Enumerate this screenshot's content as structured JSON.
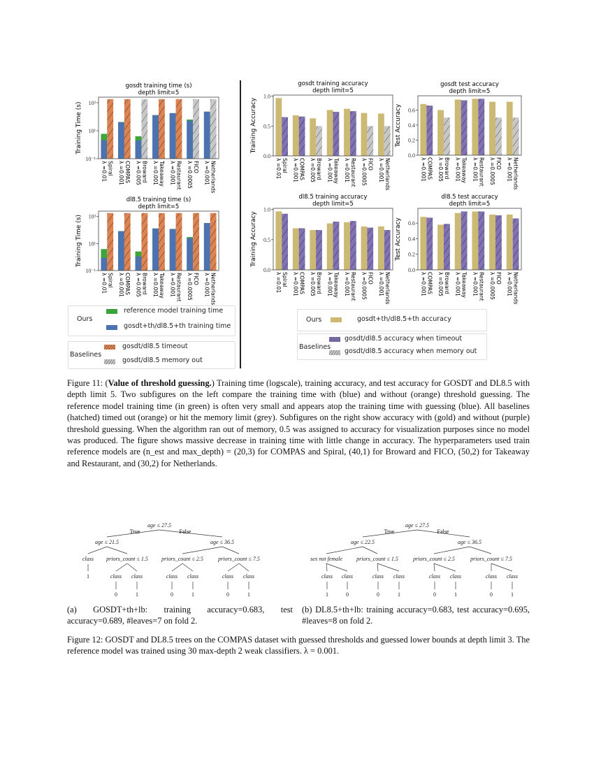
{
  "colors": {
    "green": "#3ba43b",
    "blue": "#4c72b0",
    "orange": "#dd8452",
    "grey": "#c7c7c7",
    "gold": "#ccb974",
    "purple": "#8172b3"
  },
  "chart_data": [
    {
      "id": "gosdt_time",
      "type": "bar",
      "title": "gosdt training time (s)",
      "subtitle": "depth limit=5",
      "ylabel": "Training Time (s)",
      "yscale": "log",
      "ylim": [
        0.1,
        2500
      ],
      "yticks": [
        "10⁻¹",
        "10¹",
        "10³"
      ],
      "ytick_values": [
        0.1,
        10,
        1000
      ],
      "categories": [
        "Spiral",
        "COMPAS",
        "Broward",
        "Takeaway",
        "Restaurant",
        "FICO",
        "Netherlands"
      ],
      "lambdas": [
        "λ =0.01",
        "λ =0.001",
        "λ =0.005",
        "λ =0.001",
        "λ =0.001",
        "λ =0.0005",
        "λ =0.001"
      ],
      "series": [
        {
          "name": "gosdt+th/dl8.5+th training time",
          "values": [
            2.1,
            40,
            2,
            130,
            180,
            52,
            230
          ]
        },
        {
          "name": "reference model training time",
          "values": [
            6,
            42,
            4,
            130,
            180,
            63,
            230
          ]
        },
        {
          "name": "baseline",
          "values": [
            1800,
            1800,
            1800,
            1800,
            1800,
            1800,
            1800
          ],
          "status": [
            "timeout",
            "timeout",
            "memory out",
            "timeout",
            "timeout",
            "memory out",
            "memory out"
          ]
        }
      ]
    },
    {
      "id": "dl85_time",
      "type": "bar",
      "title": "dl8.5 training time (s)",
      "subtitle": "depth limit=5",
      "ylabel": "Training Time (s)",
      "yscale": "log",
      "ylim": [
        0.1,
        2500
      ],
      "yticks": [
        "10⁻¹",
        "10¹",
        "10³"
      ],
      "ytick_values": [
        0.1,
        10,
        1000
      ],
      "categories": [
        "Spiral",
        "COMPAS",
        "Broward",
        "Takeaway",
        "Restaurant",
        "FICO",
        "Netherlands"
      ],
      "lambdas": [
        "λ =0.01",
        "λ =0.001",
        "λ =0.005",
        "λ =0.001",
        "λ =0.001",
        "λ =0.0005",
        "λ =0.001"
      ],
      "series": [
        {
          "name": "gosdt+th/dl8.5+th training time",
          "values": [
            0.85,
            82,
            1.1,
            130,
            120,
            25,
            330
          ]
        },
        {
          "name": "reference model training time",
          "values": [
            3.9,
            82,
            2.6,
            130,
            120,
            30,
            330
          ]
        },
        {
          "name": "baseline",
          "values": [
            1800,
            1800,
            1800,
            1800,
            1800,
            1800,
            1800
          ],
          "status": [
            "timeout",
            "timeout",
            "timeout",
            "timeout",
            "timeout",
            "timeout",
            "timeout"
          ]
        }
      ]
    },
    {
      "id": "gosdt_train_acc",
      "type": "bar",
      "title": "gosdt training accuracy",
      "subtitle": "depth limit=5",
      "ylabel": "Training Accuracy",
      "yscale": "linear",
      "ylim": [
        0,
        1.02
      ],
      "yticks": [
        "0.0",
        "0.5",
        "1.0"
      ],
      "ytick_values": [
        0,
        0.5,
        1.0
      ],
      "categories": [
        "Spiral",
        "COMPAS",
        "Broward",
        "Takeaway",
        "Restaurant",
        "FICO",
        "Netherlands"
      ],
      "lambdas": [
        "λ =0.01",
        "λ =0.001",
        "λ =0.005",
        "λ =0.001",
        "λ =0.001",
        "λ =0.0005",
        "λ =0.001"
      ],
      "series": [
        {
          "name": "gosdt+th/dl8.5+th accuracy",
          "values": [
            0.97,
            0.68,
            0.63,
            0.77,
            0.79,
            0.72,
            0.71
          ]
        },
        {
          "name": "baseline",
          "values": [
            0.65,
            0.66,
            0.5,
            0.74,
            0.75,
            0.5,
            0.5
          ],
          "status": [
            "timeout",
            "timeout",
            "memory out",
            "timeout",
            "timeout",
            "memory out",
            "memory out"
          ]
        }
      ]
    },
    {
      "id": "gosdt_test_acc",
      "type": "bar",
      "title": "gosdt test accuracy",
      "subtitle": "depth limit=5",
      "ylabel": "Test Accuracy",
      "yscale": "linear",
      "ylim": [
        0,
        0.79
      ],
      "yticks": [
        "0.0",
        "0.2",
        "0.4",
        "0.6"
      ],
      "ytick_values": [
        0,
        0.2,
        0.4,
        0.6
      ],
      "categories": [
        "COMPAS",
        "Broward",
        "Takeaway",
        "Restaurant",
        "FICO",
        "Netherlands"
      ],
      "lambdas": [
        "λ =0.001",
        "λ =0.005",
        "λ =0.001",
        "λ =0.001",
        "λ =0.0005",
        "λ =0.001"
      ],
      "series": [
        {
          "name": "gosdt+th/dl8.5+th accuracy",
          "values": [
            0.68,
            0.6,
            0.74,
            0.75,
            0.71,
            0.71
          ]
        },
        {
          "name": "baseline",
          "values": [
            0.66,
            0.5,
            0.73,
            0.75,
            0.5,
            0.5
          ],
          "status": [
            "timeout",
            "memory out",
            "timeout",
            "timeout",
            "memory out",
            "memory out"
          ]
        }
      ]
    },
    {
      "id": "dl85_train_acc",
      "type": "bar",
      "title": "dl8.5 training accuracy",
      "subtitle": "depth limit=5",
      "ylabel": "Training Accuracy",
      "yscale": "linear",
      "ylim": [
        0,
        1.02
      ],
      "yticks": [
        "0.0",
        "0.5",
        "1.0"
      ],
      "ytick_values": [
        0,
        0.5,
        1.0
      ],
      "categories": [
        "Spiral",
        "COMPAS",
        "Broward",
        "Takeaway",
        "Restaurant",
        "FICO",
        "Netherlands"
      ],
      "lambdas": [
        "λ =0.01",
        "λ =0.001",
        "λ =0.005",
        "λ =0.001",
        "λ =0.001",
        "λ =0.0005",
        "λ =0.001"
      ],
      "series": [
        {
          "name": "gosdt+th/dl8.5+th accuracy",
          "values": [
            0.97,
            0.69,
            0.66,
            0.77,
            0.79,
            0.72,
            0.72
          ]
        },
        {
          "name": "baseline",
          "values": [
            0.93,
            0.69,
            0.66,
            0.8,
            0.81,
            0.7,
            0.66
          ],
          "status": [
            "timeout",
            "timeout",
            "timeout",
            "timeout",
            "timeout",
            "timeout",
            "timeout"
          ]
        }
      ]
    },
    {
      "id": "dl85_test_acc",
      "type": "bar",
      "title": "dl8.5 test accuracy",
      "subtitle": "depth limit=5",
      "ylabel": "Test Accuracy",
      "yscale": "linear",
      "ylim": [
        0,
        0.79
      ],
      "yticks": [
        "0.0",
        "0.2",
        "0.4",
        "0.6"
      ],
      "ytick_values": [
        0,
        0.2,
        0.4,
        0.6
      ],
      "categories": [
        "COMPAS",
        "Broward",
        "Takeaway",
        "Restaurant",
        "FICO",
        "Netherlands"
      ],
      "lambdas": [
        "λ =0.001",
        "λ =0.005",
        "λ =0.001",
        "λ =0.001",
        "λ =0.0005",
        "λ =0.001"
      ],
      "series": [
        {
          "name": "gosdt+th/dl8.5+th accuracy",
          "values": [
            0.68,
            0.58,
            0.73,
            0.75,
            0.71,
            0.71
          ]
        },
        {
          "name": "baseline",
          "values": [
            0.67,
            0.59,
            0.75,
            0.75,
            0.7,
            0.66
          ],
          "status": [
            "timeout",
            "timeout",
            "timeout",
            "timeout",
            "timeout",
            "timeout"
          ]
        }
      ]
    }
  ],
  "legend_time": {
    "ours": "Ours",
    "baselines": "Baselines",
    "reference": "reference model training time",
    "guess": "gosdt+th/dl8.5+th training time",
    "timeout": "gosdt/dl8.5 timeout",
    "memory": "gosdt/dl8.5 memory out"
  },
  "legend_acc": {
    "ours": "Ours",
    "baselines": "Baselines",
    "guess": "gosdt+th/dl8.5+th accuracy",
    "timeout": "gosdt/dl8.5 accuracy when timeout",
    "memory": "gosdt/dl8.5 accuracy when memory out"
  },
  "figure11": {
    "label": "Figure 11: (",
    "bold": "Value of threshold guessing.",
    "text": ") Training time (logscale), training accuracy, and test accuracy for GOSDT and DL8.5 with depth limit 5. Two subfigures on the left compare the training time with (blue) and without (orange) threshold guessing. The reference model training time (in green) is often very small and appears atop the training time with guessing (blue). All baselines (hatched) timed out (orange) or hit the memory limit (grey). Subfigures on the right show accuracy with (gold) and without (purple) threshold guessing. When the algorithm ran out of memory, 0.5 was assigned to accuracy for visualization purposes since no model was produced. The figure shows massive decrease in training time with little change in accuracy. The hyperparameters used train reference models are (n_est and max_depth) = (20,3) for COMPAS and Spiral, (40,1) for Broward and FICO, (50,2) for Takeaway and Restaurant, and (30,2) for Netherlands."
  },
  "trees": [
    {
      "true_label": "True",
      "false_label": "False",
      "nodes": [
        "age ≤ 27.5",
        "age ≤ 21.5",
        "age ≤ 36.5",
        "class",
        "priors_count ≤ 1.5",
        "priors_count ≤ 2.5",
        "priors_count ≤ 7.5",
        "1",
        "class",
        "class",
        "class",
        "class",
        "class",
        "class",
        "0",
        "1",
        "0",
        "1",
        "0",
        "1"
      ],
      "caption": "(a) GOSDT+th+lb: training accuracy=0.683, test accuracy=0.689, #leaves=7 on fold 2."
    },
    {
      "true_label": "True",
      "false_label": "False",
      "nodes": [
        "age ≤ 27.5",
        "age ≤ 22.5",
        "age ≤ 36.5",
        "sex not female",
        "priors_count ≤ 1.5",
        "priors_count ≤ 2.5",
        "priors_count ≤ 7.5",
        "class",
        "class",
        "class",
        "class",
        "class",
        "class",
        "class",
        "class",
        "1",
        "0",
        "0",
        "1",
        "0",
        "1",
        "0",
        "1"
      ],
      "caption": "(b) DL8.5+th+lb: training accuracy=0.683, test accuracy=0.695, #leaves=8 on fold 2."
    }
  ],
  "figure12": {
    "text": "Figure 12: GOSDT and DL8.5 trees on the COMPAS dataset with guessed thresholds and guessed lower bounds at depth limit 3. The reference model was trained using 30 max-depth 2 weak classifiers. λ = 0.001."
  }
}
